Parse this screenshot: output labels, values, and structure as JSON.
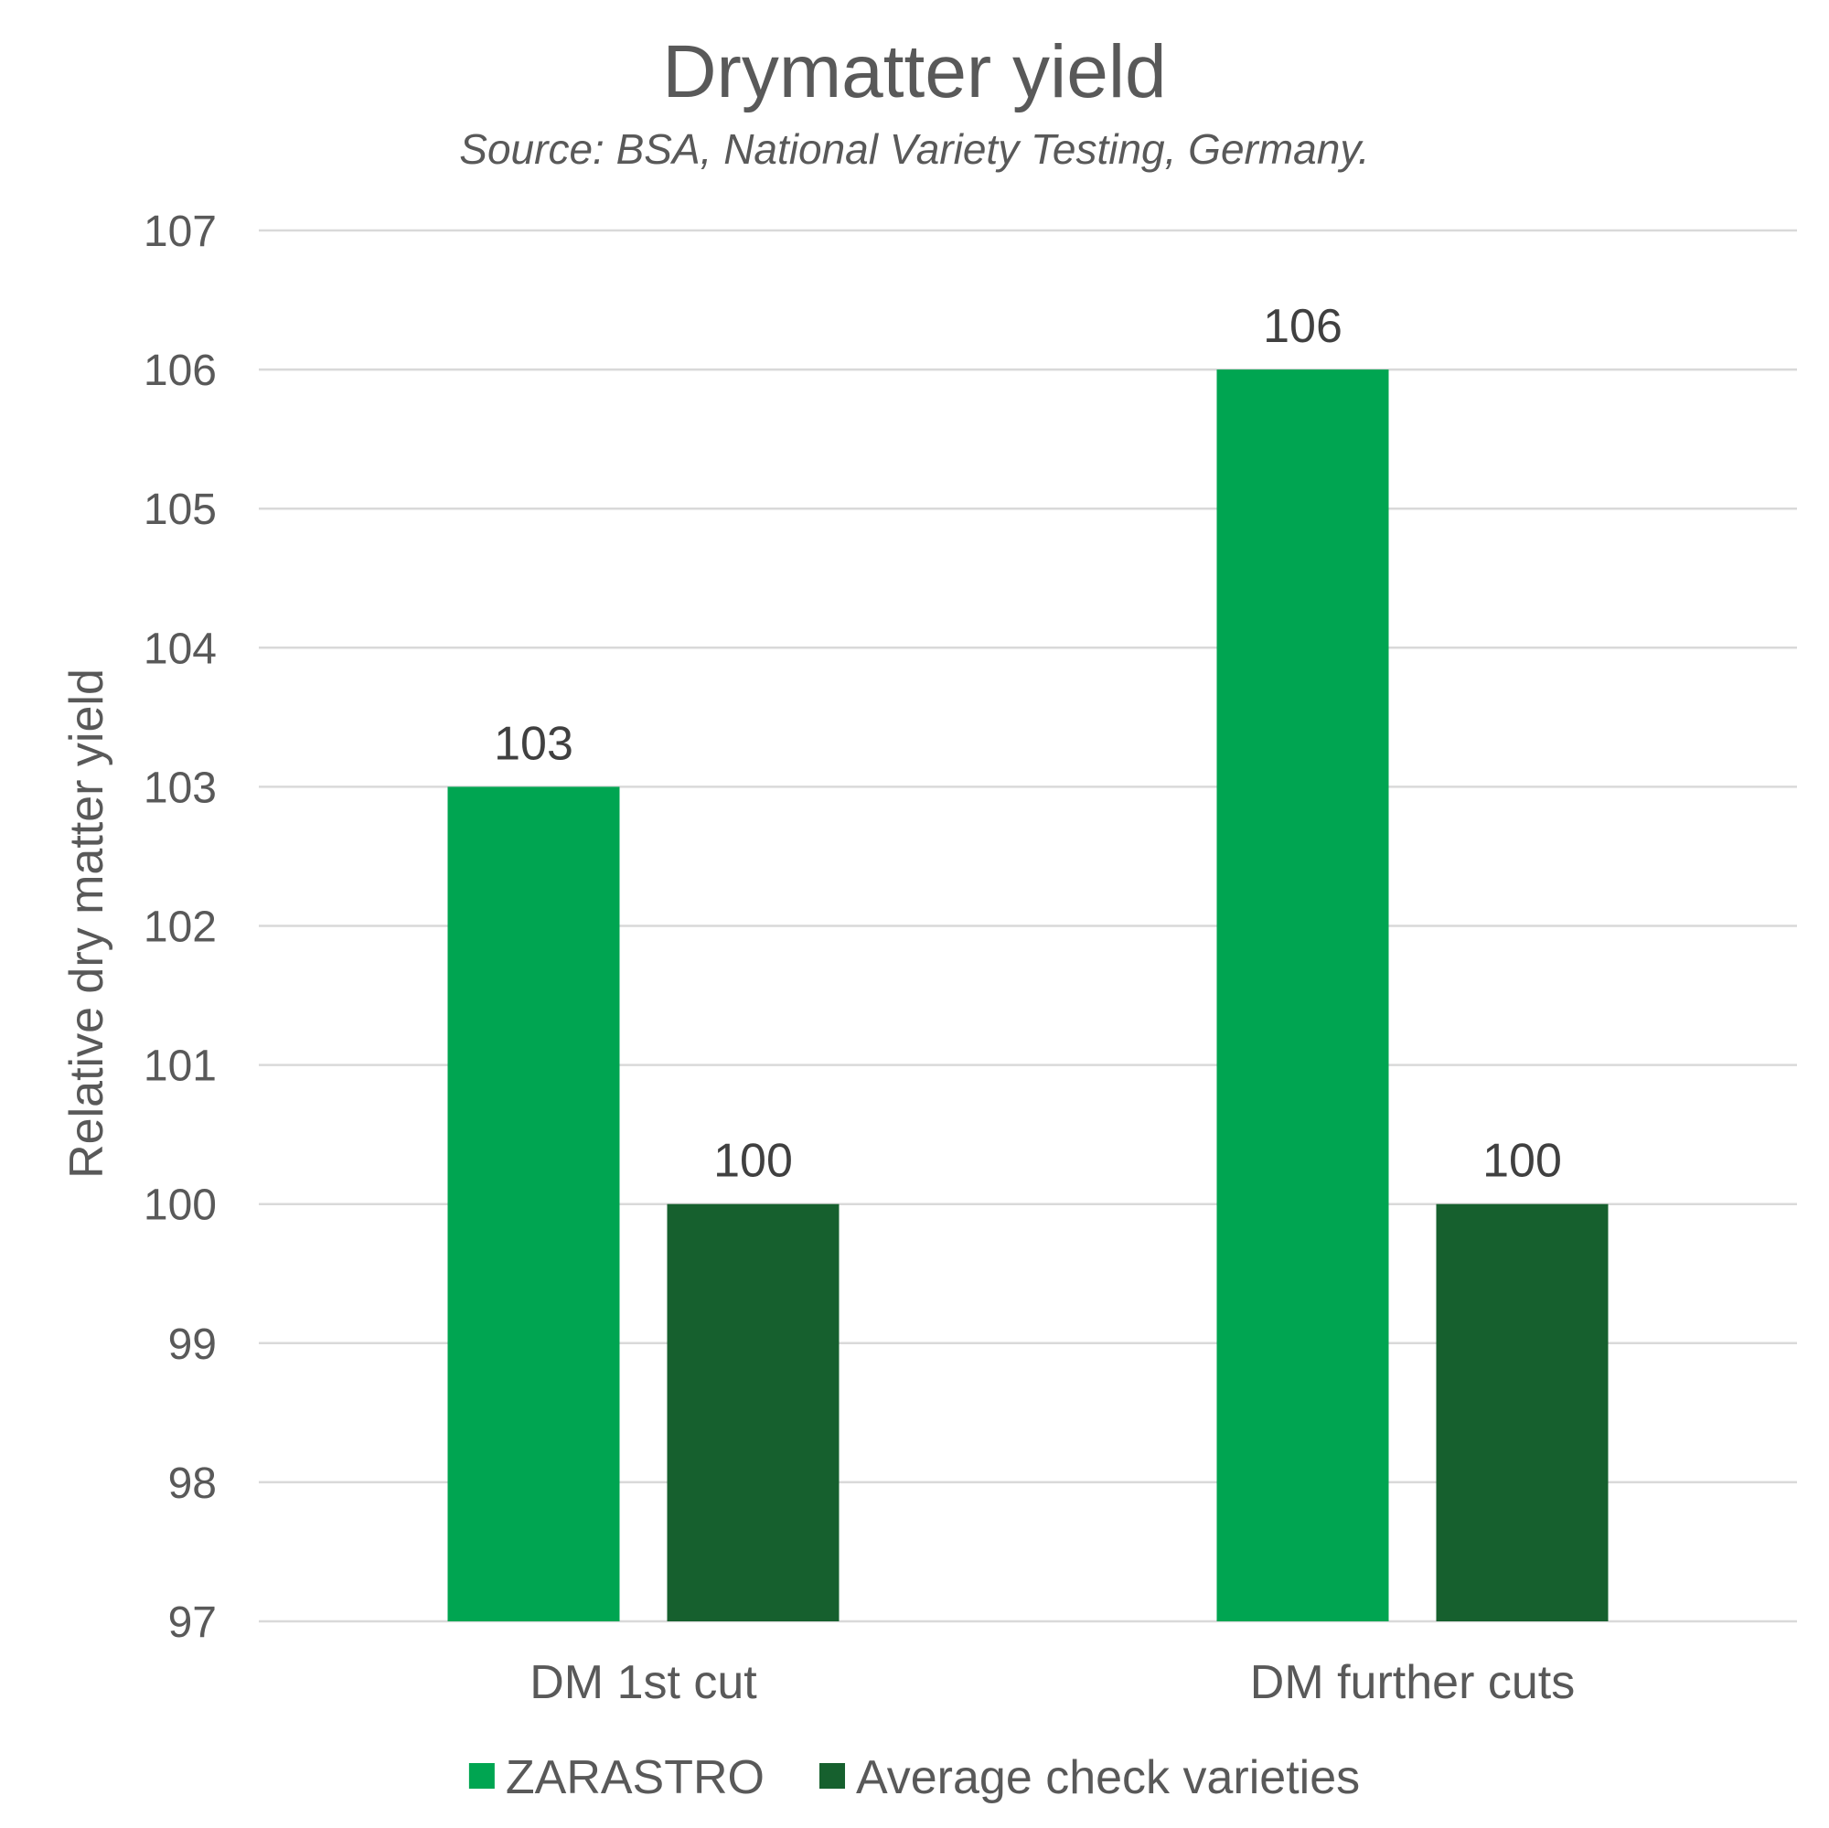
{
  "chart_data": {
    "type": "bar",
    "title": "Drymatter yield",
    "subtitle": "Source: BSA, National Variety Testing, Germany.",
    "xlabel": "",
    "ylabel": "Relative dry matter yield",
    "categories": [
      "DM 1st cut",
      "DM further cuts"
    ],
    "series": [
      {
        "name": "ZARASTRO",
        "values": [
          103,
          106
        ],
        "color": "#00a551"
      },
      {
        "name": "Average check varieties",
        "values": [
          100,
          100
        ],
        "color": "#16602e"
      }
    ],
    "ylim": [
      97,
      107
    ],
    "yticks": [
      97,
      98,
      99,
      100,
      101,
      102,
      103,
      104,
      105,
      106,
      107
    ],
    "grid": true,
    "gridline_color": "#d9d9d9",
    "legend_position": "bottom",
    "data_labels": true
  }
}
